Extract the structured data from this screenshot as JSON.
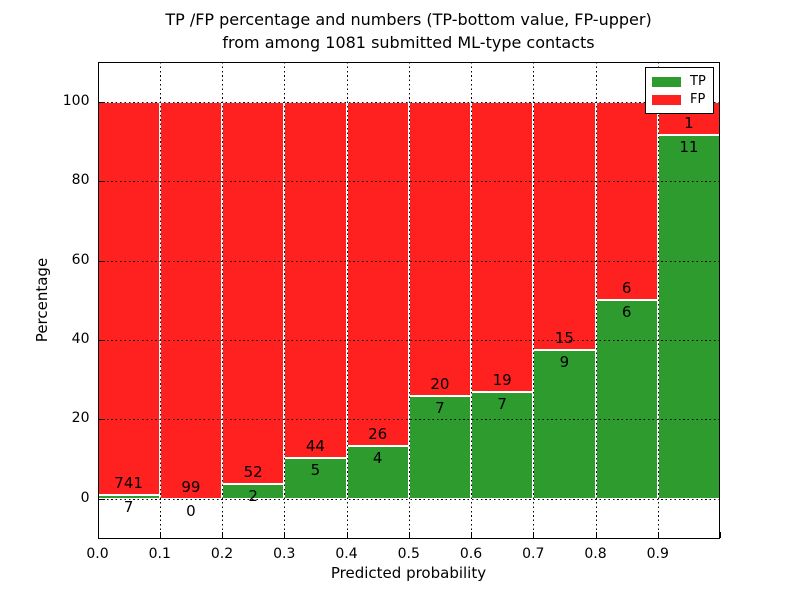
{
  "figure": {
    "title_line1": "TP /FP percentage and numbers (TP-bottom value, FP-upper)",
    "title_line2": "from among 1081 submitted ML-type contacts",
    "xlabel": "Predicted probability",
    "ylabel": "Percentage"
  },
  "legend": {
    "position": "upper right",
    "entries": [
      {
        "label": "TP",
        "color": "#2E9B2E"
      },
      {
        "label": "FP",
        "color": "#FF2020"
      }
    ]
  },
  "chart_data": {
    "type": "bar",
    "stacked": true,
    "normalized_to_percent": true,
    "title": "TP /FP percentage and numbers (TP-bottom value, FP-upper) from among 1081 submitted ML-type contacts",
    "xlabel": "Predicted probability",
    "ylabel": "Percentage",
    "total_contacts": 1081,
    "bins": [
      "0.0-0.1",
      "0.1-0.2",
      "0.2-0.3",
      "0.3-0.4",
      "0.4-0.5",
      "0.5-0.6",
      "0.6-0.7",
      "0.7-0.8",
      "0.8-0.9",
      "0.9-1.0"
    ],
    "x_tick_labels": [
      "0.0",
      "0.1",
      "0.2",
      "0.3",
      "0.4",
      "0.5",
      "0.6",
      "0.7",
      "0.8",
      "0.9"
    ],
    "x_ticks": [
      0.0,
      0.1,
      0.2,
      0.3,
      0.4,
      0.5,
      0.6,
      0.7,
      0.8,
      0.9,
      1.0
    ],
    "y_ticks": [
      0,
      20,
      40,
      60,
      80,
      100
    ],
    "xlim": [
      0.0,
      1.0
    ],
    "ylim": [
      -10,
      110
    ],
    "grid": true,
    "series": [
      {
        "name": "TP",
        "color": "#2E9B2E",
        "counts": [
          7,
          0,
          2,
          5,
          4,
          7,
          7,
          9,
          6,
          11
        ],
        "percent": [
          0.94,
          0.0,
          3.7,
          10.2,
          13.33,
          25.93,
          26.92,
          37.5,
          50.0,
          91.67
        ]
      },
      {
        "name": "FP",
        "color": "#FF2020",
        "counts": [
          741,
          99,
          52,
          44,
          26,
          20,
          19,
          15,
          6,
          1
        ],
        "percent": [
          99.06,
          100.0,
          96.3,
          89.8,
          86.67,
          74.07,
          73.08,
          62.5,
          50.0,
          8.33
        ]
      }
    ],
    "annotation_note": "FP count printed just above TP/FP boundary, TP count just below it"
  }
}
